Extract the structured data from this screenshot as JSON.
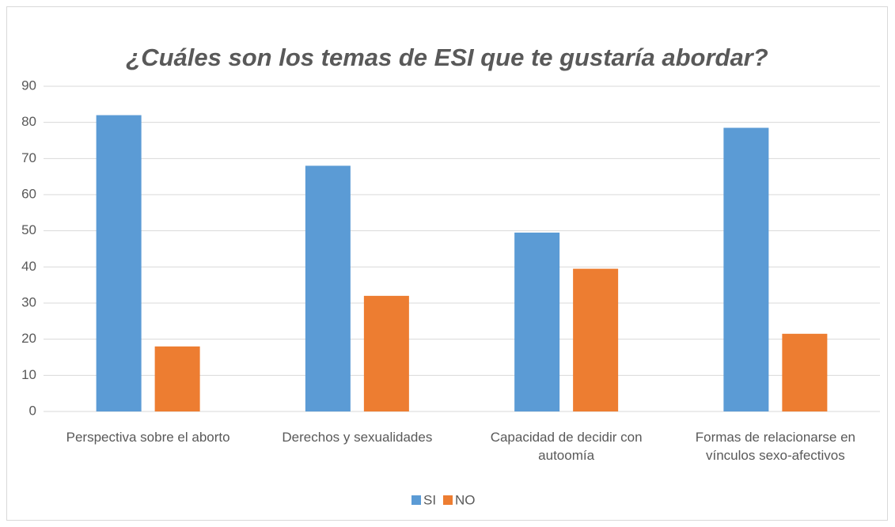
{
  "chart_data": {
    "type": "bar",
    "title": "¿Cuáles son los temas de ESI que te gustaría abordar?",
    "categories": [
      "Perspectiva sobre el aborto",
      "Derechos y sexualidades",
      "Capacidad de decidir con autoomía",
      "Formas de relacionarse en vínculos sexo-afectivos"
    ],
    "series": [
      {
        "name": "SI",
        "color": "#5b9bd5",
        "values": [
          82,
          68,
          49.5,
          78.5
        ]
      },
      {
        "name": "NO",
        "color": "#ed7d31",
        "values": [
          18,
          32,
          39.5,
          21.5
        ]
      }
    ],
    "ylim": [
      0,
      90
    ],
    "yticks": [
      0,
      10,
      20,
      30,
      40,
      50,
      60,
      70,
      80,
      90
    ],
    "grid": true,
    "legend": "bottom"
  }
}
